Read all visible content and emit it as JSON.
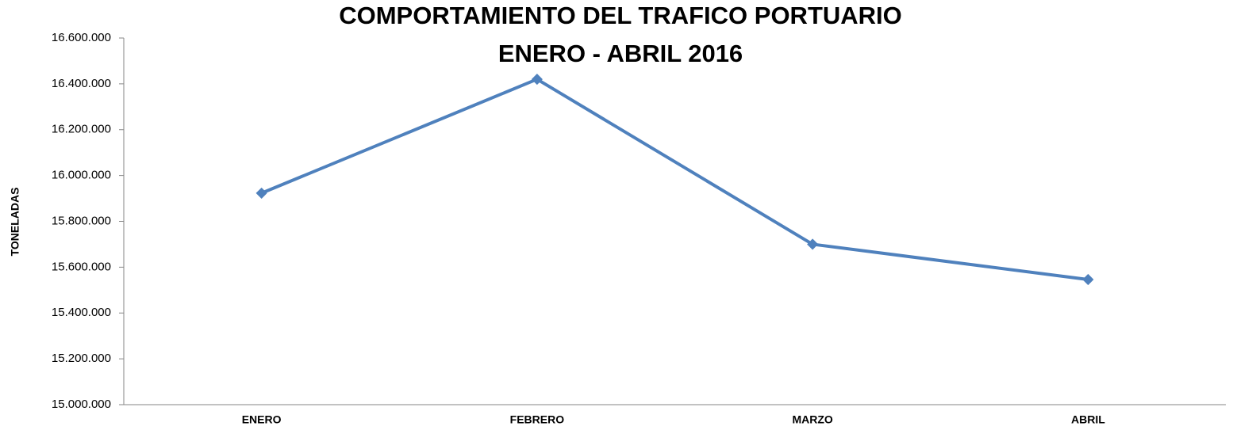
{
  "chart_data": {
    "type": "line",
    "title": "COMPORTAMIENTO DEL TRAFICO PORTUARIO",
    "subtitle": "ENERO - ABRIL 2016",
    "y_label": "TONELADAS",
    "categories": [
      "ENERO",
      "FEBRERO",
      "MARZO",
      "ABRIL"
    ],
    "series": [
      {
        "name": "TONELADAS",
        "color": "#4f81bd",
        "values": [
          15923000,
          16420000,
          15700000,
          15546000
        ]
      }
    ],
    "ylim": [
      15000000,
      16600000
    ],
    "yticks": [
      {
        "value": 15000000,
        "label": "15.000.000"
      },
      {
        "value": 15200000,
        "label": "15.200.000"
      },
      {
        "value": 15400000,
        "label": "15.400.000"
      },
      {
        "value": 15600000,
        "label": "15.600.000"
      },
      {
        "value": 15800000,
        "label": "15.800.000"
      },
      {
        "value": 16000000,
        "label": "16.000.000"
      },
      {
        "value": 16200000,
        "label": "16.200.000"
      },
      {
        "value": 16400000,
        "label": "16.400.000"
      },
      {
        "value": 16600000,
        "label": "16.600.000"
      }
    ],
    "grid": false,
    "legend": false
  }
}
